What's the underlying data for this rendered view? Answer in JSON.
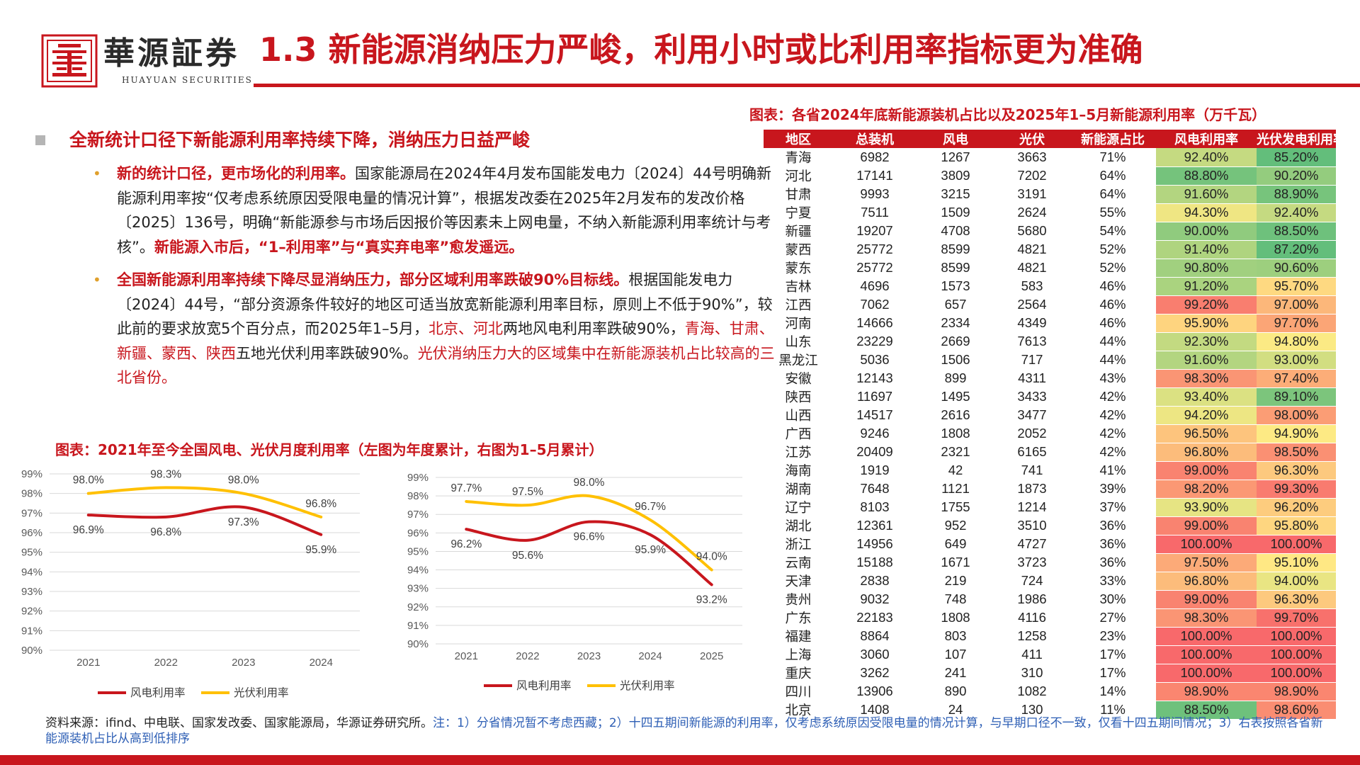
{
  "header": {
    "brand_cn": "華源証券",
    "brand_en": "HUAYUAN SECURITIES",
    "title": "1.3 新能源消纳压力严峻，利用小时或比利用率指标更为准确"
  },
  "section": {
    "heading": "全新统计口径下新能源利用率持续下降，消纳压力日益严峻",
    "bullets": [
      {
        "p1": "新的统计口径，更市场化的利用率。",
        "p2": "国家能源局在2024年4月发布国能发电力〔2024〕44号明确新能源利用率按“仅考虑系统原因受限电量的情况计算”，根据发改委在2025年2月发布的发改价格〔2025〕136号，明确“新能源参与市场后因报价等因素未上网电量，不纳入新能源利用率统计与考核”。",
        "p3": "新能源入市后，“1–利用率”与“真实弃电率”愈发遥远。"
      },
      {
        "p1": "全国新能源利用率持续下降尽显消纳压力，部分区域利用率跌破90%目标线。",
        "p2": "根据国能发电力〔2024〕44号，“部分资源条件较好的地区可适当放宽新能源利用率目标，原则上不低于90%”，较此前的要求放宽5个百分点，而2025年1–5月，",
        "p3": "北京、河北",
        "p4": "两地风电利用率跌破90%，",
        "p5": "青海、甘肃、新疆、蒙西、陕西",
        "p6": "五地光伏利用率跌破90%。",
        "p7": "光伏消纳压力大的区域集中在新能源装机占比较高的三北省份。"
      }
    ]
  },
  "chart_caption": "图表：2021年至今全国风电、光伏月度利用率（左图为年度累计，右图为1–5月累计）",
  "chart_data": [
    {
      "type": "line",
      "title": "年度累计",
      "categories": [
        "2021",
        "2022",
        "2023",
        "2024"
      ],
      "y_ticks": [
        "99%",
        "98%",
        "97%",
        "96%",
        "95%",
        "94%",
        "93%",
        "92%",
        "91%",
        "90%"
      ],
      "ylim": [
        90,
        99
      ],
      "series": [
        {
          "name": "风电利用率",
          "color": "#c8161d",
          "values": [
            96.9,
            96.8,
            97.3,
            95.9
          ],
          "labels": [
            "96.9%",
            "96.8%",
            "97.3%",
            "95.9%"
          ]
        },
        {
          "name": "光伏利用率",
          "color": "#ffc000",
          "values": [
            98.0,
            98.3,
            98.0,
            96.8
          ],
          "labels": [
            "98.0%",
            "98.3%",
            "98.0%",
            "96.8%"
          ]
        }
      ]
    },
    {
      "type": "line",
      "title": "1–5月累计",
      "categories": [
        "2021",
        "2022",
        "2023",
        "2024",
        "2025"
      ],
      "y_ticks": [
        "99%",
        "98%",
        "97%",
        "96%",
        "95%",
        "94%",
        "93%",
        "92%",
        "91%",
        "90%"
      ],
      "ylim": [
        90,
        99
      ],
      "series": [
        {
          "name": "风电利用率",
          "color": "#c8161d",
          "values": [
            96.2,
            95.6,
            96.6,
            95.9,
            93.2
          ],
          "labels": [
            "96.2%",
            "95.6%",
            "96.6%",
            "95.9%",
            "93.2%"
          ]
        },
        {
          "name": "光伏利用率",
          "color": "#ffc000",
          "values": [
            97.7,
            97.5,
            98.0,
            96.7,
            94.0
          ],
          "labels": [
            "97.7%",
            "97.5%",
            "98.0%",
            "96.7%",
            "94.0%"
          ]
        }
      ]
    }
  ],
  "table": {
    "caption": "图表：各省2024年底新能源装机占比以及2025年1–5月新能源利用率（万千瓦）",
    "headers": [
      "地区",
      "总装机",
      "风电",
      "光伏",
      "新能源占比",
      "风电利用率",
      "光伏发电利用率"
    ],
    "rows": [
      [
        "青海",
        "6982",
        "1267",
        "3663",
        "71%",
        "92.40%",
        "85.20%"
      ],
      [
        "河北",
        "17141",
        "3809",
        "7202",
        "64%",
        "88.80%",
        "90.20%"
      ],
      [
        "甘肃",
        "9993",
        "3215",
        "3191",
        "64%",
        "91.60%",
        "88.90%"
      ],
      [
        "宁夏",
        "7511",
        "1509",
        "2624",
        "55%",
        "94.30%",
        "92.40%"
      ],
      [
        "新疆",
        "19207",
        "4708",
        "5680",
        "54%",
        "90.00%",
        "88.50%"
      ],
      [
        "蒙西",
        "25772",
        "8599",
        "4821",
        "52%",
        "91.40%",
        "87.20%"
      ],
      [
        "蒙东",
        "25772",
        "8599",
        "4821",
        "52%",
        "90.80%",
        "90.60%"
      ],
      [
        "吉林",
        "4696",
        "1573",
        "583",
        "46%",
        "91.20%",
        "95.70%"
      ],
      [
        "江西",
        "7062",
        "657",
        "2564",
        "46%",
        "99.20%",
        "97.00%"
      ],
      [
        "河南",
        "14666",
        "2334",
        "4349",
        "46%",
        "95.90%",
        "97.70%"
      ],
      [
        "山东",
        "23229",
        "2669",
        "7613",
        "44%",
        "92.30%",
        "94.80%"
      ],
      [
        "黑龙江",
        "5036",
        "1506",
        "717",
        "44%",
        "91.60%",
        "93.00%"
      ],
      [
        "安徽",
        "12143",
        "899",
        "4311",
        "43%",
        "98.30%",
        "97.40%"
      ],
      [
        "陕西",
        "11697",
        "1495",
        "3433",
        "42%",
        "93.40%",
        "89.10%"
      ],
      [
        "山西",
        "14517",
        "2616",
        "3477",
        "42%",
        "94.20%",
        "98.00%"
      ],
      [
        "广西",
        "9246",
        "1808",
        "2052",
        "42%",
        "96.50%",
        "94.90%"
      ],
      [
        "江苏",
        "20409",
        "2321",
        "6165",
        "42%",
        "96.80%",
        "98.50%"
      ],
      [
        "海南",
        "1919",
        "42",
        "741",
        "41%",
        "99.00%",
        "96.30%"
      ],
      [
        "湖南",
        "7648",
        "1121",
        "1873",
        "39%",
        "98.20%",
        "99.30%"
      ],
      [
        "辽宁",
        "8103",
        "1755",
        "1214",
        "37%",
        "93.90%",
        "96.20%"
      ],
      [
        "湖北",
        "12361",
        "952",
        "3510",
        "36%",
        "99.00%",
        "95.80%"
      ],
      [
        "浙江",
        "14956",
        "649",
        "4727",
        "36%",
        "100.00%",
        "100.00%"
      ],
      [
        "云南",
        "15188",
        "1671",
        "3723",
        "36%",
        "97.50%",
        "95.10%"
      ],
      [
        "天津",
        "2838",
        "219",
        "724",
        "33%",
        "96.80%",
        "94.00%"
      ],
      [
        "贵州",
        "9032",
        "748",
        "1986",
        "30%",
        "99.00%",
        "96.30%"
      ],
      [
        "广东",
        "22183",
        "1808",
        "4116",
        "27%",
        "98.30%",
        "99.70%"
      ],
      [
        "福建",
        "8864",
        "803",
        "1258",
        "23%",
        "100.00%",
        "100.00%"
      ],
      [
        "上海",
        "3060",
        "107",
        "411",
        "17%",
        "100.00%",
        "100.00%"
      ],
      [
        "重庆",
        "3262",
        "241",
        "310",
        "17%",
        "100.00%",
        "100.00%"
      ],
      [
        "四川",
        "13906",
        "890",
        "1082",
        "14%",
        "98.90%",
        "98.90%"
      ],
      [
        "北京",
        "1408",
        "24",
        "130",
        "11%",
        "88.50%",
        "98.60%"
      ]
    ]
  },
  "footer": {
    "source": "资料来源：ifind、中电联、国家发改委、国家能源局，华源证券研究所。",
    "note": "注：1）分省情况暂不考虑西藏；2）十四五期间新能源的利用率，仅考虑系统原因受限电量的情况计算，与早期口径不一致，仅看十四五期间情况；3）右表按照各省新能源装机占比从高到低排序"
  },
  "colors": {
    "brand_red": "#c8161d",
    "wind": "#c8161d",
    "solar": "#ffc000"
  }
}
